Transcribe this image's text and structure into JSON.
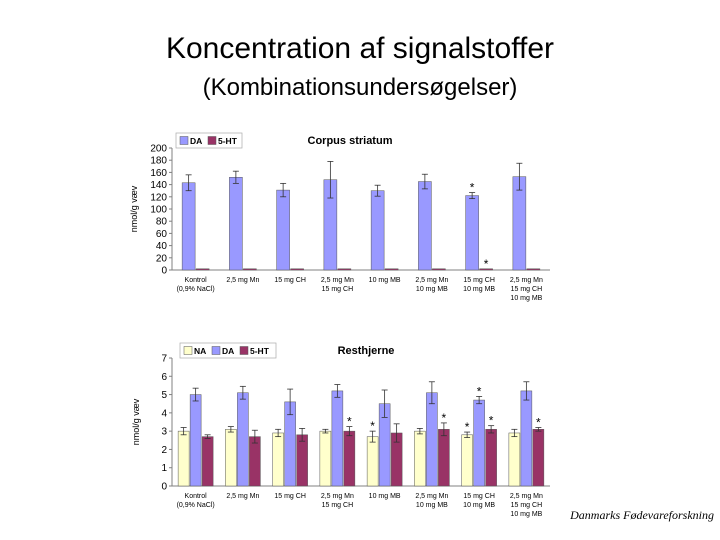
{
  "page": {
    "title": "Koncentration af signalstoffer",
    "subtitle": "(Kombinationsundersøgelser)",
    "footer": "Danmarks Fødevareforskning"
  },
  "colors": {
    "NA": "#ffffcc",
    "DA": "#9999ff",
    "5-HT": "#993366"
  },
  "chart_data": [
    {
      "type": "bar",
      "title": "Corpus striatum",
      "ylabel": "nmol/g væv",
      "ylim": [
        0,
        200
      ],
      "yticks": [
        0,
        20,
        40,
        60,
        80,
        100,
        120,
        140,
        160,
        180,
        200
      ],
      "legend": "top-left",
      "grid": false,
      "categories": [
        [
          "Kontrol",
          "(0,9% NaCl)"
        ],
        [
          "2,5 mg Mn"
        ],
        [
          "15 mg CH"
        ],
        [
          "2,5 mg Mn",
          "15 mg CH"
        ],
        [
          "10 mg MB"
        ],
        [
          "2,5 mg Mn",
          "10 mg MB"
        ],
        [
          "15 mg CH",
          "10 mg MB"
        ],
        [
          "2,5 mg Mn",
          "15 mg CH",
          "10 mg MB"
        ]
      ],
      "series": [
        {
          "name": "DA",
          "color": "#9999ff",
          "values": [
            143,
            152,
            131,
            148,
            130,
            145,
            122,
            153
          ],
          "errors": [
            13,
            10,
            11,
            30,
            9,
            12,
            5,
            22
          ],
          "sig": [
            false,
            false,
            false,
            false,
            false,
            false,
            true,
            false
          ]
        },
        {
          "name": "5-HT",
          "color": "#993366",
          "values": [
            2,
            2,
            2,
            2,
            2,
            2,
            2,
            2
          ],
          "errors": [
            0,
            0,
            0,
            0,
            0,
            0,
            0,
            0
          ],
          "sig": [
            false,
            false,
            false,
            false,
            false,
            false,
            true,
            false
          ]
        }
      ]
    },
    {
      "type": "bar",
      "title": "Resthjerne",
      "ylabel": "nmol/g væv",
      "ylim": [
        0,
        7
      ],
      "yticks": [
        0,
        1,
        2,
        3,
        4,
        5,
        6,
        7
      ],
      "legend": "top-left",
      "grid": false,
      "categories": [
        [
          "Kontrol",
          "(0,9% NaCl)"
        ],
        [
          "2,5 mg Mn"
        ],
        [
          "15 mg CH"
        ],
        [
          "2,5 mg Mn",
          "15 mg CH"
        ],
        [
          "10 mg MB"
        ],
        [
          "2,5 mg Mn",
          "10 mg MB"
        ],
        [
          "15 mg CH",
          "10 mg MB"
        ],
        [
          "2,5 mg Mn",
          "15 mg CH",
          "10 mg MB"
        ]
      ],
      "series": [
        {
          "name": "NA",
          "color": "#ffffcc",
          "values": [
            3.0,
            3.1,
            2.9,
            3.0,
            2.7,
            3.0,
            2.8,
            2.9
          ],
          "errors": [
            0.2,
            0.15,
            0.2,
            0.1,
            0.3,
            0.15,
            0.15,
            0.2
          ],
          "sig": [
            false,
            false,
            false,
            false,
            true,
            false,
            true,
            false
          ]
        },
        {
          "name": "DA",
          "color": "#9999ff",
          "values": [
            5.0,
            5.1,
            4.6,
            5.2,
            4.5,
            5.1,
            4.7,
            5.2
          ],
          "errors": [
            0.35,
            0.35,
            0.7,
            0.35,
            0.75,
            0.6,
            0.2,
            0.5
          ],
          "sig": [
            false,
            false,
            false,
            false,
            false,
            false,
            true,
            false
          ]
        },
        {
          "name": "5-HT",
          "color": "#993366",
          "values": [
            2.7,
            2.7,
            2.8,
            3.0,
            2.9,
            3.1,
            3.1,
            3.1
          ],
          "errors": [
            0.1,
            0.35,
            0.35,
            0.25,
            0.5,
            0.35,
            0.2,
            0.1
          ],
          "sig": [
            false,
            false,
            false,
            true,
            false,
            true,
            true,
            true
          ]
        }
      ]
    }
  ]
}
